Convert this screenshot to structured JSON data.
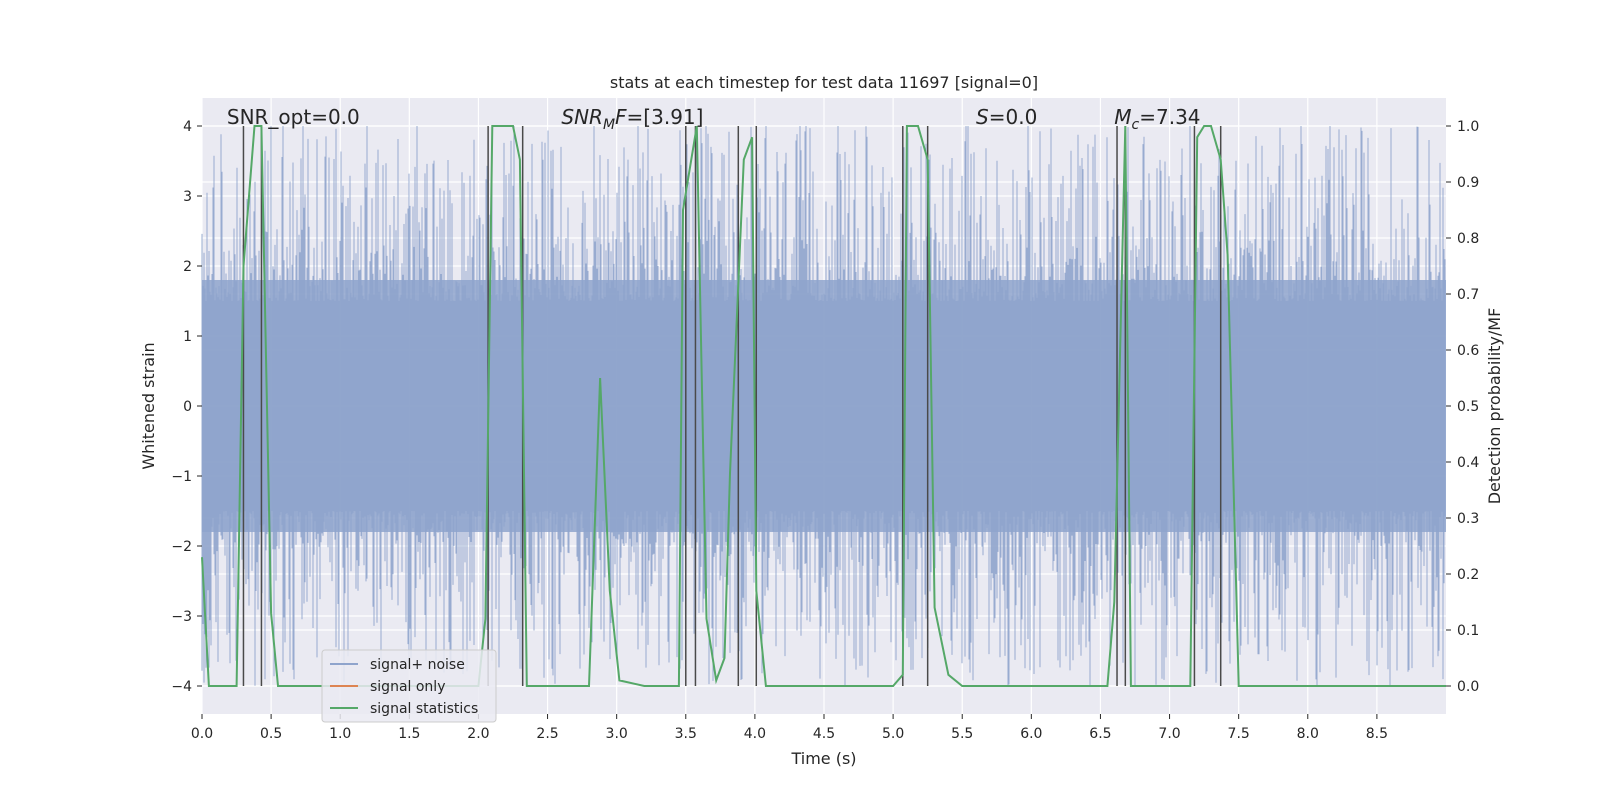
{
  "chart_data": {
    "type": "line",
    "title": "stats at each timestep for test data 11697 [signal=0]",
    "xlabel": "Time (s)",
    "ylabel": "Whitened strain",
    "y2label": "Detection probability/MF",
    "xlim": [
      0.0,
      9.0
    ],
    "ylim": [
      -4.4,
      4.4
    ],
    "y2lim": [
      -0.05,
      1.05
    ],
    "xticks": [
      0.0,
      0.5,
      1.0,
      1.5,
      2.0,
      2.5,
      3.0,
      3.5,
      4.0,
      4.5,
      5.0,
      5.5,
      6.0,
      6.5,
      7.0,
      7.5,
      8.0,
      8.5
    ],
    "xtick_labels": [
      "0.0",
      "0.5",
      "1.0",
      "1.5",
      "2.0",
      "2.5",
      "3.0",
      "3.5",
      "4.0",
      "4.5",
      "5.0",
      "5.5",
      "6.0",
      "6.5",
      "7.0",
      "7.5",
      "8.0",
      "8.5"
    ],
    "yticks": [
      -4,
      -3,
      -2,
      -1,
      0,
      1,
      2,
      3,
      4
    ],
    "ytick_labels": [
      "−4",
      "−3",
      "−2",
      "−1",
      "0",
      "1",
      "2",
      "3",
      "4"
    ],
    "y2ticks": [
      0.0,
      0.1,
      0.2,
      0.3,
      0.4,
      0.5,
      0.6,
      0.7,
      0.8,
      0.9,
      1.0
    ],
    "y2tick_labels": [
      "0.0",
      "0.1",
      "0.2",
      "0.3",
      "0.4",
      "0.5",
      "0.6",
      "0.7",
      "0.8",
      "0.9",
      "1.0"
    ],
    "annotations": [
      {
        "id": "snr-opt",
        "text": "SNR_opt=0.0",
        "x": 0.18
      },
      {
        "id": "snr-mf",
        "text": "SNR_MF=[3.91]",
        "x": 2.6,
        "main": "SNR",
        "sub": "M",
        "tail": "F=[3.91]"
      },
      {
        "id": "s-val",
        "text": "S=0.0",
        "x": 5.6,
        "main": "S",
        "tail": "=0.0"
      },
      {
        "id": "mc-val",
        "text": "M_c=7.34",
        "x": 6.6,
        "main": "M",
        "sub": "c",
        "tail": "=7.34"
      }
    ],
    "legend": {
      "position": "lower-left",
      "entries": [
        {
          "label": "signal+ noise",
          "color": "#8fa4cc"
        },
        {
          "label": "signal only",
          "color": "#dd8452"
        },
        {
          "label": "signal statistics",
          "color": "#55a868"
        }
      ]
    },
    "noise_band": {
      "low": -1.8,
      "high": 1.8,
      "color": "#8fa4cc",
      "opacity": 0.85
    },
    "vertical_markers": [
      0.3,
      0.43,
      2.07,
      2.32,
      3.5,
      3.57,
      3.88,
      4.01,
      5.07,
      5.25,
      6.62,
      6.68,
      7.18,
      7.37
    ],
    "series": [
      {
        "name": "signal statistics",
        "axis": "right",
        "color": "#55a868",
        "x": [
          0.0,
          0.05,
          0.25,
          0.3,
          0.38,
          0.43,
          0.5,
          0.55,
          0.6,
          2.0,
          2.05,
          2.1,
          2.25,
          2.3,
          2.35,
          2.5,
          2.6,
          2.8,
          2.88,
          2.95,
          3.02,
          3.2,
          3.45,
          3.48,
          3.58,
          3.65,
          3.72,
          3.78,
          3.82,
          3.92,
          3.98,
          4.01,
          4.08,
          5.0,
          5.07,
          5.1,
          5.18,
          5.25,
          5.3,
          5.4,
          5.5,
          6.55,
          6.6,
          6.68,
          6.72,
          6.75,
          7.15,
          7.2,
          7.25,
          7.3,
          7.37,
          7.42,
          7.5,
          8.3,
          8.4,
          9.0
        ],
        "values": [
          0.23,
          0.0,
          0.0,
          0.75,
          1.0,
          1.0,
          0.13,
          0.0,
          0.0,
          0.0,
          0.12,
          1.0,
          1.0,
          0.94,
          0.0,
          0.0,
          0.0,
          0.0,
          0.55,
          0.17,
          0.01,
          0.0,
          0.0,
          0.85,
          1.0,
          0.12,
          0.01,
          0.05,
          0.38,
          0.94,
          0.98,
          0.17,
          0.0,
          0.0,
          0.02,
          1.0,
          1.0,
          0.94,
          0.14,
          0.02,
          0.0,
          0.0,
          0.15,
          1.0,
          0.0,
          0.0,
          0.0,
          0.98,
          1.0,
          1.0,
          0.94,
          0.77,
          0.0,
          0.0,
          0.0,
          0.0
        ]
      }
    ]
  }
}
